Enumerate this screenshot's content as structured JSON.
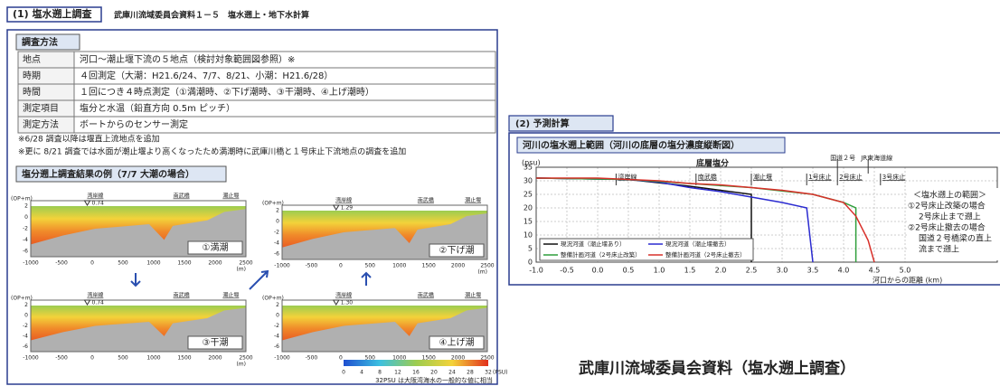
{
  "header": {
    "section": "(1) 塩水遡上調査",
    "doc": "武庫川流域委員会資料１－５　塩水遡上・地下水計算"
  },
  "method": {
    "title": "調査方法",
    "rows": [
      [
        "地点",
        "河口～潮止堰下流の５地点（検討対象範囲図参照）※"
      ],
      [
        "時期",
        "４回測定（大潮：H21.6/24、7/7、8/21、小潮：H21.6/28）"
      ],
      [
        "時間",
        "１回につき４時点測定（①満潮時、②下げ潮時、③干潮時、④上げ潮時）"
      ],
      [
        "測定項目",
        "塩分と水温（鉛直方向 0.5m ピッチ）"
      ],
      [
        "測定方法",
        "ボートからのセンサー測定"
      ]
    ],
    "notes": [
      "※6/28 調査以降は堰直上流地点を追加",
      "※更に 8/21 調査では水面が潮止堰より高くなったため満潮時に武庫川橋と１号床止下流地点の調査を追加"
    ]
  },
  "results": {
    "title": "塩分遡上調査結果の例（7/7 大潮の場合）",
    "ylabel": "(OP+m)",
    "xlabel": "(m)",
    "xlim": [
      -1000,
      2500
    ],
    "ylim": [
      -7,
      3
    ],
    "xticks": [
      -1000,
      -500,
      0,
      500,
      1000,
      1500,
      2000,
      2500
    ],
    "yticks": [
      2,
      0,
      -2,
      -4,
      -6
    ],
    "landmarks": [
      "湾岸線",
      "南武橋",
      "潮止堰"
    ],
    "panels": [
      {
        "label": "①満潮",
        "level": "0.74"
      },
      {
        "label": "②下げ潮",
        "level": "1.29"
      },
      {
        "label": "③干潮",
        "level": "0.74"
      },
      {
        "label": "④上げ潮",
        "level": "1.30"
      }
    ],
    "colorbar": {
      "ticks": [
        0,
        4,
        8,
        12,
        16,
        20,
        24,
        28,
        32
      ],
      "unit": "(PSU)",
      "note": "32PSU は大阪湾海水の一般的な値に相当"
    }
  },
  "prediction": {
    "section": "(2) 予測計算",
    "notes": [
      "＜塩水遡上の範囲＞",
      "①2号床止改築の場合",
      "2号床止まで遡上",
      "②2号床止撤去の場合",
      "国道２号橋梁の直上",
      "流まで遡上"
    ]
  },
  "chart_data": {
    "type": "line",
    "title": "河川の塩水遡上範囲（河川の底層の塩分濃度縦断図）",
    "subtitle": "底層塩分",
    "ylabel": "(psu)",
    "xlabel": "河口からの距離 (km)",
    "xlim": [
      -1,
      6.5
    ],
    "ylim": [
      0,
      35
    ],
    "xticks": [
      {
        "value": -1,
        "label": "-1.0"
      },
      {
        "value": -0.5,
        "label": "-0.5"
      },
      {
        "value": 0,
        "label": "0.0"
      },
      {
        "value": 0.5,
        "label": "0.5"
      },
      {
        "value": 1,
        "label": "1.0"
      },
      {
        "value": 1.5,
        "label": "1.5"
      },
      {
        "value": 2,
        "label": "2.0"
      },
      {
        "value": 2.5,
        "label": "2.5"
      },
      {
        "value": 3,
        "label": "3.0"
      },
      {
        "value": 3.5,
        "label": "3.5"
      },
      {
        "value": 4,
        "label": "4.0"
      },
      {
        "value": 4.5,
        "label": "4.5"
      },
      {
        "value": 5,
        "label": "5.0"
      }
    ],
    "yticks": [
      0,
      5,
      10,
      15,
      20,
      25,
      30,
      35
    ],
    "grid": true,
    "legend": "lower left",
    "series": [
      {
        "name": "現況河道（潮止堰あり）",
        "color": "#111111",
        "x": [
          -1,
          0.5,
          1.5,
          2.5,
          2.5
        ],
        "values": [
          31,
          30.5,
          28,
          25,
          0
        ]
      },
      {
        "name": "現況河道（潮止堰撤去）",
        "color": "#2b2bd0",
        "x": [
          -1,
          0.5,
          1,
          1.5,
          2,
          2.5,
          3,
          3.4,
          3.5
        ],
        "values": [
          31,
          30.5,
          29.5,
          27.5,
          26,
          24,
          22,
          20,
          0
        ]
      },
      {
        "name": "整備計画河道（2号床止改築）",
        "color": "#2e9e3a",
        "x": [
          -1,
          0.5,
          1.5,
          2.5,
          3.5,
          4,
          4.2,
          4.2
        ],
        "values": [
          31,
          30.5,
          29,
          27.5,
          25,
          22,
          20,
          0
        ]
      },
      {
        "name": "整備計画河道（2号床止撤去）",
        "color": "#d8302a",
        "x": [
          -1,
          0,
          0.5,
          1,
          1.5,
          2,
          2.5,
          3,
          3.5,
          4,
          4.2,
          4.4,
          4.5
        ],
        "values": [
          31,
          31,
          30.5,
          30,
          29,
          28.5,
          27.5,
          26.5,
          25,
          22,
          17,
          8,
          0
        ]
      }
    ],
    "landmarks": [
      {
        "label": "湾岸線",
        "x": 0.3
      },
      {
        "label": "南武橋",
        "x": 1.6
      },
      {
        "label": "潮止堰",
        "x": 2.5
      },
      {
        "label": "1号床止",
        "x": 3.4
      },
      {
        "label": "2号床止",
        "x": 3.9
      },
      {
        "label": "3号床止",
        "x": 4.6
      }
    ],
    "upper_landmarks": [
      {
        "label": "国道２号",
        "x": 3.9
      },
      {
        "label": "JR東海道線",
        "x": 4.4
      }
    ]
  },
  "caption": "武庫川流域委員会資料（塩水遡上調査）"
}
